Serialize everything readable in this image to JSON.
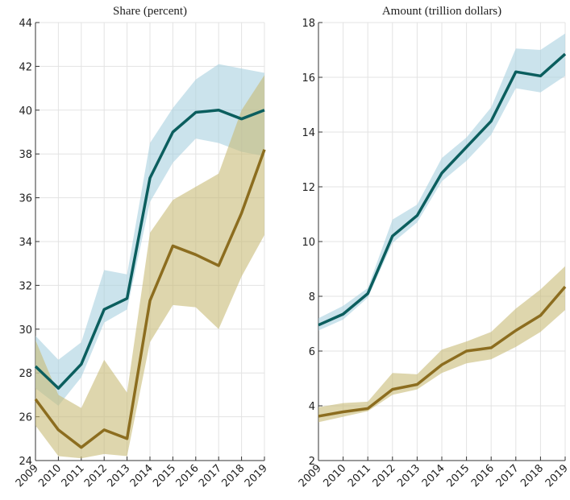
{
  "chart_data": [
    {
      "type": "line",
      "title": "Share (percent)",
      "x": [
        2009,
        2010,
        2011,
        2012,
        2013,
        2014,
        2015,
        2016,
        2017,
        2018,
        2019
      ],
      "xlim": [
        2009,
        2019
      ],
      "xticks": [
        2009,
        2010,
        2011,
        2012,
        2013,
        2014,
        2015,
        2016,
        2017,
        2018,
        2019
      ],
      "ylim": [
        24,
        44
      ],
      "yticks": [
        24,
        26,
        28,
        30,
        32,
        34,
        36,
        38,
        40,
        42,
        44
      ],
      "grid": true,
      "series": [
        {
          "color": "#0b5e5e",
          "band_color": "#a8d0e0",
          "values": [
            28.3,
            27.3,
            28.4,
            30.9,
            31.4,
            36.9,
            39.0,
            39.9,
            40.0,
            39.6,
            40.0
          ],
          "lower": [
            27.3,
            26.5,
            27.8,
            30.3,
            30.9,
            35.8,
            37.6,
            38.7,
            38.5,
            38.1,
            37.9
          ],
          "upper": [
            29.7,
            28.6,
            29.4,
            32.7,
            32.5,
            38.5,
            40.1,
            41.4,
            42.1,
            41.9,
            41.7
          ]
        },
        {
          "color": "#8c6d1f",
          "band_color": "#c8bb77",
          "values": [
            26.8,
            25.4,
            24.6,
            25.4,
            25.0,
            31.3,
            33.8,
            33.4,
            32.9,
            35.3,
            38.2
          ],
          "lower": [
            25.6,
            24.2,
            24.1,
            24.3,
            24.2,
            29.4,
            31.1,
            31.0,
            30.0,
            32.4,
            34.3
          ],
          "upper": [
            29.5,
            27.0,
            26.4,
            28.6,
            27.1,
            34.4,
            35.9,
            36.5,
            37.1,
            40.0,
            41.6
          ]
        }
      ]
    },
    {
      "type": "line",
      "title": "Amount (trillion dollars)",
      "x": [
        2009,
        2010,
        2011,
        2012,
        2013,
        2014,
        2015,
        2016,
        2017,
        2018,
        2019
      ],
      "xlim": [
        2009,
        2019
      ],
      "xticks": [
        2009,
        2010,
        2011,
        2012,
        2013,
        2014,
        2015,
        2016,
        2017,
        2018,
        2019
      ],
      "ylim": [
        2,
        18
      ],
      "yticks": [
        2,
        4,
        6,
        8,
        10,
        12,
        14,
        16,
        18
      ],
      "grid": true,
      "series": [
        {
          "color": "#0b5e5e",
          "band_color": "#a8d0e0",
          "values": [
            6.95,
            7.35,
            8.1,
            10.2,
            10.95,
            12.5,
            13.45,
            14.4,
            16.2,
            16.05,
            16.85
          ],
          "lower": [
            6.75,
            7.15,
            7.95,
            9.95,
            10.7,
            12.2,
            12.95,
            13.9,
            15.6,
            15.45,
            16.05
          ],
          "upper": [
            7.2,
            7.65,
            8.3,
            10.8,
            11.35,
            13.05,
            13.8,
            14.9,
            17.05,
            17.0,
            17.6
          ]
        },
        {
          "color": "#8c6d1f",
          "band_color": "#c8bb77",
          "values": [
            3.62,
            3.78,
            3.9,
            4.6,
            4.78,
            5.5,
            6.0,
            6.12,
            6.75,
            7.3,
            8.35
          ],
          "lower": [
            3.4,
            3.6,
            3.8,
            4.4,
            4.6,
            5.2,
            5.55,
            5.7,
            6.15,
            6.7,
            7.5
          ],
          "upper": [
            3.95,
            4.1,
            4.15,
            5.2,
            5.15,
            6.05,
            6.35,
            6.7,
            7.55,
            8.25,
            9.1
          ]
        }
      ]
    }
  ]
}
